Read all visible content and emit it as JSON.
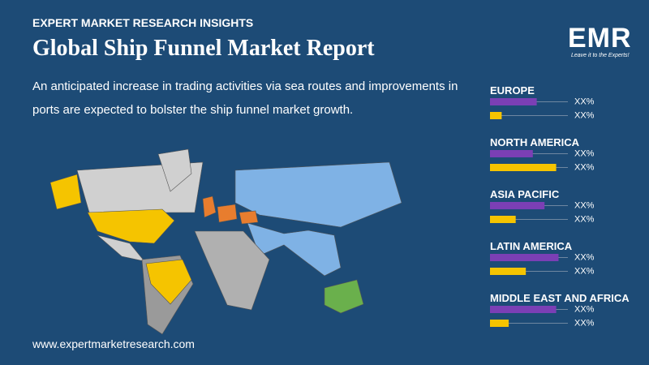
{
  "header": {
    "kicker": "EXPERT MARKET RESEARCH INSIGHTS",
    "title": "Global Ship Funnel Market Report",
    "description": "An anticipated increase in trading activities via sea routes and improvements in ports are expected to bolster the ship funnel market growth."
  },
  "logo": {
    "text": "EMR",
    "tagline": "Leave it to the Experts!"
  },
  "regions": [
    {
      "name": "EUROPE",
      "bars": [
        {
          "value": 60,
          "label": "XX%",
          "color": "#7b3fb5"
        },
        {
          "value": 15,
          "label": "XX%",
          "color": "#f5c400"
        }
      ]
    },
    {
      "name": "NORTH AMERICA",
      "bars": [
        {
          "value": 55,
          "label": "XX%",
          "color": "#7b3fb5"
        },
        {
          "value": 85,
          "label": "XX%",
          "color": "#f5c400"
        }
      ]
    },
    {
      "name": "ASIA PACIFIC",
      "bars": [
        {
          "value": 70,
          "label": "XX%",
          "color": "#7b3fb5"
        },
        {
          "value": 33,
          "label": "XX%",
          "color": "#f5c400"
        }
      ]
    },
    {
      "name": "LATIN AMERICA",
      "bars": [
        {
          "value": 88,
          "label": "XX%",
          "color": "#7b3fb5"
        },
        {
          "value": 46,
          "label": "XX%",
          "color": "#f5c400"
        }
      ]
    },
    {
      "name": "MIDDLE EAST AND AFRICA",
      "bars": [
        {
          "value": 85,
          "label": "XX%",
          "color": "#7b3fb5"
        },
        {
          "value": 24,
          "label": "XX%",
          "color": "#f5c400"
        }
      ]
    }
  ],
  "footer": {
    "website": "www.expertmarketresearch.com"
  }
}
